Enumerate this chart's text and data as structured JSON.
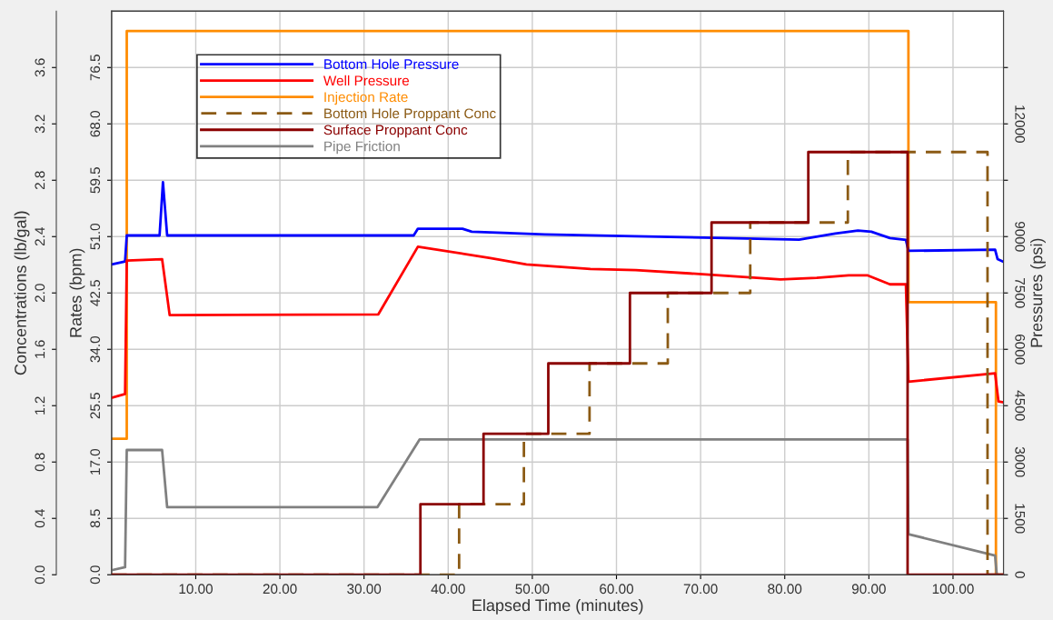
{
  "chart_data": {
    "type": "line",
    "xlabel": "Elapsed Time (minutes)",
    "ylabel": "Rates (bpm)",
    "y2label": "Pressures (psi)",
    "y3label": "Concentrations (lb/gal)",
    "xlim": [
      0,
      106
    ],
    "xticks": [
      {
        "value": 10,
        "label": "10.00"
      },
      {
        "value": 20,
        "label": "20.00"
      },
      {
        "value": 30,
        "label": "30.00"
      },
      {
        "value": 40,
        "label": "40.00"
      },
      {
        "value": 50,
        "label": "50.00"
      },
      {
        "value": 60,
        "label": "60.00"
      },
      {
        "value": 70,
        "label": "70.00"
      },
      {
        "value": 80,
        "label": "80.00"
      },
      {
        "value": 90,
        "label": "90.00"
      },
      {
        "value": 100,
        "label": "100.00"
      }
    ],
    "ylim": [
      0,
      85
    ],
    "yticks": [
      {
        "value": 0,
        "label": "0.0"
      },
      {
        "value": 8.5,
        "label": "8.5"
      },
      {
        "value": 17,
        "label": "17.0"
      },
      {
        "value": 25.5,
        "label": "25.5"
      },
      {
        "value": 34,
        "label": "34.0"
      },
      {
        "value": 42.5,
        "label": "42.5"
      },
      {
        "value": 51,
        "label": "51.0"
      },
      {
        "value": 59.5,
        "label": "59.5"
      },
      {
        "value": 68,
        "label": "68.0"
      },
      {
        "value": 76.5,
        "label": "76.5"
      }
    ],
    "y2lim": [
      0,
      15000
    ],
    "y2ticks": [
      0,
      1500,
      3000,
      4500,
      6000,
      7500,
      9000,
      {
        "value": 10500,
        "label": null
      },
      12000,
      {
        "value": 13500,
        "label": null
      }
    ],
    "y3lim": [
      0,
      4.0
    ],
    "y3ticks": [
      {
        "value": 0,
        "label": "0.0"
      },
      {
        "value": 0.4,
        "label": "0.4"
      },
      {
        "value": 0.8,
        "label": "0.8"
      },
      {
        "value": 1.2,
        "label": "1.2"
      },
      {
        "value": 1.6,
        "label": "1.6"
      },
      {
        "value": 2.0,
        "label": "2.0"
      },
      {
        "value": 2.4,
        "label": "2.4"
      },
      {
        "value": 2.8,
        "label": "2.8"
      },
      {
        "value": 3.2,
        "label": "3.2"
      },
      {
        "value": 3.6,
        "label": "3.6"
      }
    ],
    "grid": true,
    "legend": "top left",
    "series": [
      {
        "name": "Bottom Hole Pressure",
        "color": "#0000ff",
        "axis": "y2",
        "x": [
          0,
          1.6,
          1.8,
          5.7,
          6.1,
          6.6,
          35.9,
          36.4,
          41.7,
          42.8,
          51.5,
          62.2,
          73,
          81.7,
          86,
          88.7,
          90.3,
          92.5,
          94.4,
          94.7,
          105,
          105.3,
          106
        ],
        "values": [
          8260,
          8340,
          9030,
          9030,
          10450,
          9030,
          9030,
          9210,
          9210,
          9130,
          9060,
          9010,
          8960,
          8920,
          9080,
          9160,
          9130,
          8960,
          8910,
          8620,
          8650,
          8400,
          8330
        ]
      },
      {
        "name": "Well Pressure",
        "color": "#ff0000",
        "axis": "y2",
        "x": [
          0,
          1.6,
          1.8,
          6.0,
          6.9,
          31.7,
          36.4,
          45,
          49.3,
          56.9,
          62.3,
          68.7,
          79.5,
          83.8,
          87.6,
          89.8,
          92.5,
          94.4,
          94.7,
          105,
          105.4,
          106
        ],
        "values": [
          4710,
          4810,
          8360,
          8400,
          6910,
          6930,
          8730,
          8430,
          8260,
          8140,
          8110,
          8020,
          7860,
          7900,
          7970,
          7970,
          7730,
          7730,
          5140,
          5360,
          4610,
          4590
        ]
      },
      {
        "name": "Injection Rate",
        "color": "#ff8c00",
        "axis": "y",
        "type": "step",
        "x": [
          0,
          1.8,
          94.7,
          105.1,
          106
        ],
        "values": [
          20.5,
          82.0,
          41.1,
          0,
          0
        ]
      },
      {
        "name": "Bottom Hole Proppant Conc",
        "color": "#8b5a14",
        "axis": "y3",
        "type": "step",
        "line_style": "dashed",
        "x": [
          0,
          41.3,
          49.0,
          56.8,
          66.1,
          75.9,
          87.5,
          104.1,
          106
        ],
        "values": [
          0,
          0.5,
          1.0,
          1.5,
          2.0,
          2.5,
          3.0,
          0,
          0
        ]
      },
      {
        "name": "Surface Proppant Conc",
        "color": "#8b0000",
        "axis": "y3",
        "type": "step",
        "x": [
          0,
          36.7,
          44.2,
          51.9,
          61.6,
          71.3,
          82.8,
          94.6,
          106
        ],
        "values": [
          0,
          0.5,
          1.0,
          1.5,
          2.0,
          2.5,
          3.0,
          0,
          0
        ]
      },
      {
        "name": "Pipe Friction",
        "color": "#808080",
        "axis": "y2",
        "x": [
          0,
          1.6,
          1.8,
          6.0,
          6.6,
          31.6,
          36.6,
          94.6,
          94.7,
          105.0,
          105.2,
          106
        ],
        "values": [
          120,
          200,
          3320,
          3320,
          1800,
          1800,
          3600,
          3600,
          1080,
          510,
          0,
          0
        ]
      }
    ]
  }
}
